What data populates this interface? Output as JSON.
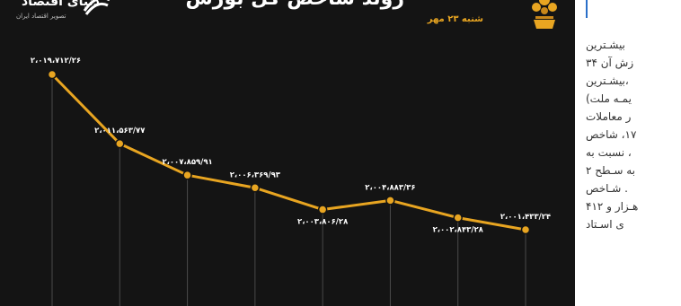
{
  "header": {
    "title": "روند شاخص کل بورس",
    "date": "شنبه ۲۳ مهر"
  },
  "logo": {
    "name": "دنیای اقتصاد",
    "tagline": "تصویر اقتصاد ایران"
  },
  "chart_data": {
    "type": "line",
    "x": [
      "1",
      "2",
      "3",
      "4",
      "5",
      "6",
      "7",
      "8"
    ],
    "values": [
      2019712.26,
      2011563.77,
      2007859.91,
      2006369.93,
      2003806.28,
      2004883.36,
      2002843.28,
      2001433.24
    ],
    "data_labels": [
      "۲،۰۱۹،۷۱۲/۲۶",
      "۲،۰۱۱،۵۶۳/۷۷",
      "۲،۰۰۷،۸۵۹/۹۱",
      "۲،۰۰۶،۳۶۹/۹۳",
      "۲،۰۰۳،۸۰۶/۲۸",
      "۲،۰۰۴،۸۸۳/۳۶",
      "۲،۰۰۲،۸۴۳/۲۸",
      "۲،۰۰۱،۴۳۳/۲۴"
    ],
    "label_side": [
      "above",
      "above",
      "above",
      "above",
      "below",
      "above",
      "below",
      "above"
    ],
    "line_color": "#e8a521",
    "background_color": "#141414",
    "grid": "vertical"
  },
  "article": {
    "lines": [
      "بیشـترین",
      "زش آن ۳۴",
      "،بیشـترین",
      "یمـه ملت)",
      "ر معاملات",
      "۱۷، شاخص",
      "، نسبت به",
      "به سـطح ۲",
      ". شـاخص",
      "هـزار و ۴۱۲",
      "ی اسـتاد"
    ]
  }
}
